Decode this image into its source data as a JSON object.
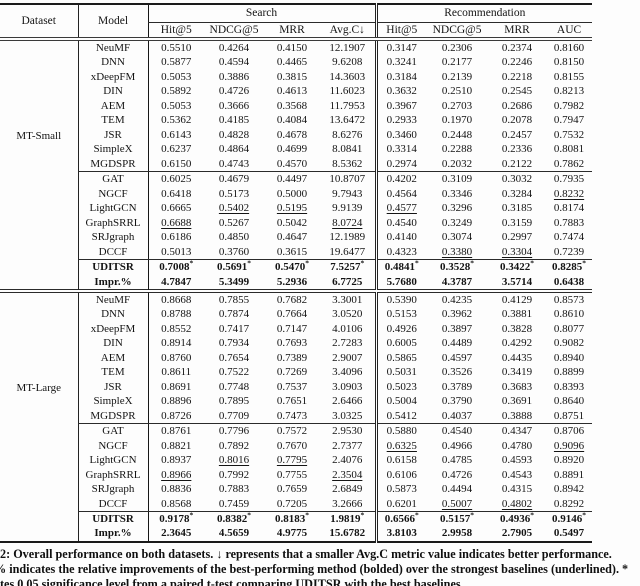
{
  "table": {
    "header": {
      "dataset": "Dataset",
      "model": "Model",
      "groups": [
        {
          "label": "Search",
          "metrics": [
            "Hit@5",
            "NDCG@5",
            "MRR",
            "Avg.C↓"
          ]
        },
        {
          "label": "Recommendation",
          "metrics": [
            "Hit@5",
            "NDCG@5",
            "MRR",
            "AUC"
          ]
        }
      ]
    },
    "underline_marker": "_",
    "sections": [
      {
        "dataset": "MT-Small",
        "rows": [
          {
            "model": "NeuMF",
            "cells": [
              "0.5510",
              "0.4264",
              "0.4150",
              "12.1907",
              "0.3147",
              "0.2306",
              "0.2374",
              "0.8160"
            ]
          },
          {
            "model": "DNN",
            "cells": [
              "0.5877",
              "0.4594",
              "0.4465",
              "9.6208",
              "0.3241",
              "0.2177",
              "0.2246",
              "0.8150"
            ]
          },
          {
            "model": "xDeepFM",
            "cells": [
              "0.5053",
              "0.3886",
              "0.3815",
              "14.3603",
              "0.3184",
              "0.2139",
              "0.2218",
              "0.8155"
            ]
          },
          {
            "model": "DIN",
            "cells": [
              "0.5892",
              "0.4726",
              "0.4613",
              "11.6023",
              "0.3632",
              "0.2510",
              "0.2545",
              "0.8213"
            ]
          },
          {
            "model": "AEM",
            "cells": [
              "0.5053",
              "0.3666",
              "0.3568",
              "11.7953",
              "0.3967",
              "0.2703",
              "0.2686",
              "0.7982"
            ]
          },
          {
            "model": "TEM",
            "cells": [
              "0.5362",
              "0.4185",
              "0.4084",
              "13.6472",
              "0.2933",
              "0.1970",
              "0.2078",
              "0.7947"
            ]
          },
          {
            "model": "JSR",
            "cells": [
              "0.6143",
              "0.4828",
              "0.4678",
              "8.6276",
              "0.3460",
              "0.2448",
              "0.2457",
              "0.7532"
            ]
          },
          {
            "model": "SimpleX",
            "cells": [
              "0.6237",
              "0.4864",
              "0.4699",
              "8.0841",
              "0.3314",
              "0.2288",
              "0.2336",
              "0.8081"
            ]
          },
          {
            "model": "MGDSPR",
            "rule_after": true,
            "cells": [
              "0.6150",
              "0.4743",
              "0.4570",
              "8.5362",
              "0.2974",
              "0.2032",
              "0.2122",
              "0.7862"
            ]
          },
          {
            "model": "GAT",
            "cells": [
              "0.6025",
              "0.4679",
              "0.4497",
              "10.8707",
              "0.4202",
              "0.3109",
              "0.3032",
              "0.7935"
            ]
          },
          {
            "model": "NGCF",
            "cells": [
              "0.6418",
              "0.5173",
              "0.5000",
              "9.7943",
              "0.4564",
              "0.3346",
              "0.3284",
              "_0.8232"
            ]
          },
          {
            "model": "LightGCN",
            "cells": [
              "0.6665",
              "_0.5402",
              "_0.5195",
              "9.9139",
              "_0.4577",
              "0.3296",
              "0.3185",
              "0.8174"
            ]
          },
          {
            "model": "GraphSRRL",
            "cells": [
              "_0.6688",
              "0.5267",
              "0.5042",
              "_8.0724",
              "0.4540",
              "0.3249",
              "0.3159",
              "0.7883"
            ]
          },
          {
            "model": "SRJgraph",
            "cells": [
              "0.6186",
              "0.4850",
              "0.4647",
              "12.1989",
              "0.4140",
              "0.3074",
              "0.2997",
              "0.7474"
            ]
          },
          {
            "model": "DCCF",
            "rule_after": true,
            "cells": [
              "0.5013",
              "0.3760",
              "0.3615",
              "19.6477",
              "0.4323",
              "_0.3380",
              "_0.3304",
              "0.7239"
            ]
          },
          {
            "model": "UDITSR",
            "bold": true,
            "star": true,
            "cells": [
              "0.7008",
              "0.5691",
              "0.5470",
              "7.5257",
              "0.4841",
              "0.3528",
              "0.3422",
              "0.8285"
            ]
          },
          {
            "model": "Impr.%",
            "bold": true,
            "cells": [
              "4.7847",
              "5.3499",
              "5.2936",
              "6.7725",
              "5.7680",
              "4.3787",
              "3.5714",
              "0.6438"
            ]
          }
        ]
      },
      {
        "dataset": "MT-Large",
        "rows": [
          {
            "model": "NeuMF",
            "cells": [
              "0.8668",
              "0.7855",
              "0.7682",
              "3.3001",
              "0.5390",
              "0.4235",
              "0.4129",
              "0.8573"
            ]
          },
          {
            "model": "DNN",
            "cells": [
              "0.8788",
              "0.7874",
              "0.7664",
              "3.0520",
              "0.5153",
              "0.3962",
              "0.3881",
              "0.8610"
            ]
          },
          {
            "model": "xDeepFM",
            "cells": [
              "0.8552",
              "0.7417",
              "0.7147",
              "4.0106",
              "0.4926",
              "0.3897",
              "0.3828",
              "0.8077"
            ]
          },
          {
            "model": "DIN",
            "cells": [
              "0.8914",
              "0.7934",
              "0.7693",
              "2.7283",
              "0.6005",
              "0.4489",
              "0.4292",
              "0.9082"
            ]
          },
          {
            "model": "AEM",
            "cells": [
              "0.8760",
              "0.7654",
              "0.7389",
              "2.9007",
              "0.5865",
              "0.4597",
              "0.4435",
              "0.8940"
            ]
          },
          {
            "model": "TEM",
            "cells": [
              "0.8611",
              "0.7522",
              "0.7269",
              "3.4096",
              "0.5031",
              "0.3526",
              "0.3419",
              "0.8899"
            ]
          },
          {
            "model": "JSR",
            "cells": [
              "0.8691",
              "0.7748",
              "0.7537",
              "3.0903",
              "0.5023",
              "0.3789",
              "0.3683",
              "0.8393"
            ]
          },
          {
            "model": "SimpleX",
            "cells": [
              "0.8896",
              "0.7895",
              "0.7651",
              "2.6466",
              "0.5004",
              "0.3790",
              "0.3691",
              "0.8640"
            ]
          },
          {
            "model": "MGDSPR",
            "rule_after": true,
            "cells": [
              "0.8726",
              "0.7709",
              "0.7473",
              "3.0325",
              "0.5412",
              "0.4037",
              "0.3888",
              "0.8751"
            ]
          },
          {
            "model": "GAT",
            "cells": [
              "0.8761",
              "0.7796",
              "0.7572",
              "2.9530",
              "0.5880",
              "0.4540",
              "0.4347",
              "0.8706"
            ]
          },
          {
            "model": "NGCF",
            "cells": [
              "0.8821",
              "0.7892",
              "0.7670",
              "2.7377",
              "_0.6325",
              "0.4966",
              "0.4780",
              "_0.9096"
            ]
          },
          {
            "model": "LightGCN",
            "cells": [
              "0.8937",
              "_0.8016",
              "_0.7795",
              "2.4076",
              "0.6158",
              "0.4785",
              "0.4593",
              "0.8920"
            ]
          },
          {
            "model": "GraphSRRL",
            "cells": [
              "_0.8966",
              "0.7992",
              "0.7755",
              "_2.3504",
              "0.6106",
              "0.4726",
              "0.4543",
              "0.8891"
            ]
          },
          {
            "model": "SRJgraph",
            "cells": [
              "0.8836",
              "0.7883",
              "0.7659",
              "2.6849",
              "0.5873",
              "0.4494",
              "0.4315",
              "0.8942"
            ]
          },
          {
            "model": "DCCF",
            "rule_after": true,
            "cells": [
              "0.8568",
              "0.7459",
              "0.7205",
              "3.2666",
              "0.6201",
              "_0.5007",
              "_0.4802",
              "0.8292"
            ]
          },
          {
            "model": "UDITSR",
            "bold": true,
            "star": true,
            "cells": [
              "0.9178",
              "0.8382",
              "0.8183",
              "1.9819",
              "0.6566",
              "0.5157",
              "0.4936",
              "0.9146"
            ]
          },
          {
            "model": "Impr.%",
            "bold": true,
            "cells": [
              "2.3645",
              "4.5659",
              "4.9775",
              "15.6782",
              "3.8103",
              "2.9958",
              "2.7905",
              "0.5497"
            ]
          }
        ]
      }
    ]
  },
  "caption": {
    "line1": "2: Overall performance on both datasets. ↓ represents that a smaller Avg.C metric value indicates better performance.",
    "line2": "% indicates the relative improvements of the best-performing method (bolded) over the strongest baselines (underlined). *",
    "line3": "tes 0.05 significance level from a paired t-test comparing UDITSR with the best baselines."
  }
}
